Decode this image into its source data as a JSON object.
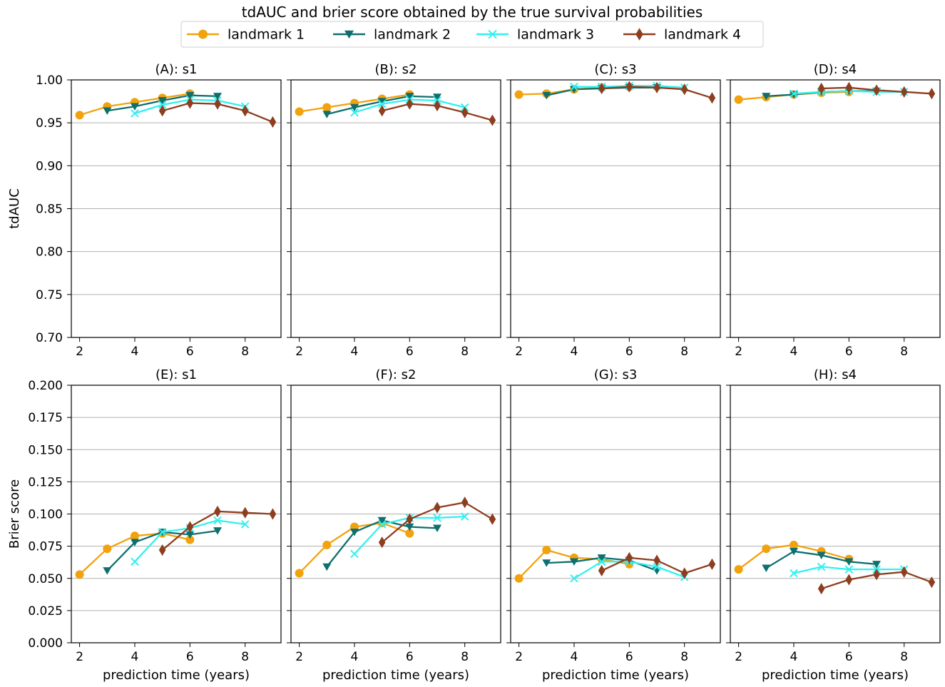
{
  "figure_title": "tdAUC and brier score obtained by the true survival probabilities",
  "legend": [
    {
      "label": "landmark 1",
      "color": "#f2a20d",
      "marker": "circle"
    },
    {
      "label": "landmark 2",
      "color": "#0e6f6f",
      "marker": "triangle-down"
    },
    {
      "label": "landmark 3",
      "color": "#33f0f0",
      "marker": "x"
    },
    {
      "label": "landmark 4",
      "color": "#8e3e1f",
      "marker": "diamond"
    }
  ],
  "chart_data": [
    {
      "type": "line",
      "title": "(A): s1",
      "xlabel": "",
      "ylabel": "tdAUC",
      "xlim": [
        1.7,
        9.3
      ],
      "ylim": [
        0.7,
        1.0
      ],
      "xticks": [
        "2",
        "4",
        "6",
        "8"
      ],
      "yticks": [
        "0.70",
        "0.75",
        "0.80",
        "0.85",
        "0.90",
        "0.95",
        "1.00"
      ],
      "series": [
        {
          "name": "landmark 1",
          "x": [
            2,
            3,
            4,
            5,
            6
          ],
          "y": [
            0.959,
            0.969,
            0.974,
            0.979,
            0.984
          ]
        },
        {
          "name": "landmark 2",
          "x": [
            3,
            4,
            5,
            6,
            7
          ],
          "y": [
            0.964,
            0.969,
            0.976,
            0.982,
            0.981
          ]
        },
        {
          "name": "landmark 3",
          "x": [
            4,
            5,
            6,
            7,
            8
          ],
          "y": [
            0.961,
            0.971,
            0.977,
            0.976,
            0.969
          ]
        },
        {
          "name": "landmark 4",
          "x": [
            5,
            6,
            7,
            8,
            9
          ],
          "y": [
            0.964,
            0.973,
            0.972,
            0.964,
            0.951
          ]
        }
      ]
    },
    {
      "type": "line",
      "title": "(B): s2",
      "xlabel": "",
      "ylabel": "",
      "xlim": [
        1.7,
        9.3
      ],
      "ylim": [
        0.7,
        1.0
      ],
      "xticks": [
        "2",
        "4",
        "6",
        "8"
      ],
      "yticks": [],
      "series": [
        {
          "name": "landmark 1",
          "x": [
            2,
            3,
            4,
            5,
            6
          ],
          "y": [
            0.963,
            0.968,
            0.973,
            0.978,
            0.983
          ]
        },
        {
          "name": "landmark 2",
          "x": [
            3,
            4,
            5,
            6,
            7
          ],
          "y": [
            0.96,
            0.968,
            0.975,
            0.981,
            0.98
          ]
        },
        {
          "name": "landmark 3",
          "x": [
            4,
            5,
            6,
            7,
            8
          ],
          "y": [
            0.962,
            0.972,
            0.977,
            0.976,
            0.968
          ]
        },
        {
          "name": "landmark 4",
          "x": [
            5,
            6,
            7,
            8,
            9
          ],
          "y": [
            0.964,
            0.972,
            0.97,
            0.962,
            0.953
          ]
        }
      ]
    },
    {
      "type": "line",
      "title": "(C): s3",
      "xlabel": "",
      "ylabel": "",
      "xlim": [
        1.7,
        9.3
      ],
      "ylim": [
        0.7,
        1.0
      ],
      "xticks": [
        "2",
        "4",
        "6",
        "8"
      ],
      "yticks": [],
      "series": [
        {
          "name": "landmark 1",
          "x": [
            2,
            3,
            4,
            5,
            6
          ],
          "y": [
            0.983,
            0.984,
            0.989,
            0.991,
            0.992
          ]
        },
        {
          "name": "landmark 2",
          "x": [
            3,
            4,
            5,
            6,
            7
          ],
          "y": [
            0.982,
            0.989,
            0.99,
            0.991,
            0.991
          ]
        },
        {
          "name": "landmark 3",
          "x": [
            4,
            5,
            6,
            7,
            8
          ],
          "y": [
            0.992,
            0.992,
            0.993,
            0.993,
            0.991
          ]
        },
        {
          "name": "landmark 4",
          "x": [
            5,
            6,
            7,
            8,
            9
          ],
          "y": [
            0.99,
            0.992,
            0.991,
            0.989,
            0.979
          ]
        }
      ]
    },
    {
      "type": "line",
      "title": "(D): s4",
      "xlabel": "",
      "ylabel": "",
      "xlim": [
        1.7,
        9.3
      ],
      "ylim": [
        0.7,
        1.0
      ],
      "xticks": [
        "2",
        "4",
        "6",
        "8"
      ],
      "yticks": [],
      "series": [
        {
          "name": "landmark 1",
          "x": [
            2,
            3,
            4,
            5,
            6
          ],
          "y": [
            0.977,
            0.98,
            0.983,
            0.985,
            0.986
          ]
        },
        {
          "name": "landmark 2",
          "x": [
            3,
            4,
            5,
            6,
            7
          ],
          "y": [
            0.981,
            0.983,
            0.986,
            0.987,
            0.987
          ]
        },
        {
          "name": "landmark 3",
          "x": [
            4,
            5,
            6,
            7,
            8
          ],
          "y": [
            0.984,
            0.986,
            0.987,
            0.986,
            0.986
          ]
        },
        {
          "name": "landmark 4",
          "x": [
            5,
            6,
            7,
            8,
            9
          ],
          "y": [
            0.99,
            0.991,
            0.988,
            0.986,
            0.984
          ]
        }
      ]
    },
    {
      "type": "line",
      "title": "(E): s1",
      "xlabel": "prediction time (years)",
      "ylabel": "Brier score",
      "xlim": [
        1.7,
        9.3
      ],
      "ylim": [
        0.0,
        0.2
      ],
      "xticks": [
        "2",
        "4",
        "6",
        "8"
      ],
      "yticks": [
        "0.000",
        "0.025",
        "0.050",
        "0.075",
        "0.100",
        "0.125",
        "0.150",
        "0.175",
        "0.200"
      ],
      "series": [
        {
          "name": "landmark 1",
          "x": [
            2,
            3,
            4,
            5,
            6
          ],
          "y": [
            0.053,
            0.073,
            0.083,
            0.085,
            0.08
          ]
        },
        {
          "name": "landmark 2",
          "x": [
            3,
            4,
            5,
            6,
            7
          ],
          "y": [
            0.056,
            0.078,
            0.086,
            0.084,
            0.087
          ]
        },
        {
          "name": "landmark 3",
          "x": [
            4,
            5,
            6,
            7,
            8
          ],
          "y": [
            0.063,
            0.086,
            0.089,
            0.095,
            0.092
          ]
        },
        {
          "name": "landmark 4",
          "x": [
            5,
            6,
            7,
            8,
            9
          ],
          "y": [
            0.072,
            0.09,
            0.102,
            0.101,
            0.1
          ]
        }
      ]
    },
    {
      "type": "line",
      "title": "(F): s2",
      "xlabel": "prediction time (years)",
      "ylabel": "",
      "xlim": [
        1.7,
        9.3
      ],
      "ylim": [
        0.0,
        0.2
      ],
      "xticks": [
        "2",
        "4",
        "6",
        "8"
      ],
      "yticks": [],
      "series": [
        {
          "name": "landmark 1",
          "x": [
            2,
            3,
            4,
            5,
            6
          ],
          "y": [
            0.054,
            0.076,
            0.09,
            0.093,
            0.085
          ]
        },
        {
          "name": "landmark 2",
          "x": [
            3,
            4,
            5,
            6,
            7
          ],
          "y": [
            0.059,
            0.086,
            0.095,
            0.09,
            0.089
          ]
        },
        {
          "name": "landmark 3",
          "x": [
            4,
            5,
            6,
            7,
            8
          ],
          "y": [
            0.069,
            0.092,
            0.097,
            0.097,
            0.098
          ]
        },
        {
          "name": "landmark 4",
          "x": [
            5,
            6,
            7,
            8,
            9
          ],
          "y": [
            0.078,
            0.096,
            0.105,
            0.109,
            0.096
          ]
        }
      ]
    },
    {
      "type": "line",
      "title": "(G): s3",
      "xlabel": "prediction time (years)",
      "ylabel": "",
      "xlim": [
        1.7,
        9.3
      ],
      "ylim": [
        0.0,
        0.2
      ],
      "xticks": [
        "2",
        "4",
        "6",
        "8"
      ],
      "yticks": [],
      "series": [
        {
          "name": "landmark 1",
          "x": [
            2,
            3,
            4,
            5,
            6
          ],
          "y": [
            0.05,
            0.072,
            0.066,
            0.065,
            0.061
          ]
        },
        {
          "name": "landmark 2",
          "x": [
            3,
            4,
            5,
            6,
            7
          ],
          "y": [
            0.062,
            0.063,
            0.066,
            0.064,
            0.056
          ]
        },
        {
          "name": "landmark 3",
          "x": [
            4,
            5,
            6,
            7,
            8
          ],
          "y": [
            0.05,
            0.063,
            0.063,
            0.059,
            0.051
          ]
        },
        {
          "name": "landmark 4",
          "x": [
            5,
            6,
            7,
            8,
            9
          ],
          "y": [
            0.056,
            0.066,
            0.064,
            0.054,
            0.061
          ]
        }
      ]
    },
    {
      "type": "line",
      "title": "(H): s4",
      "xlabel": "prediction time (years)",
      "ylabel": "",
      "xlim": [
        1.7,
        9.3
      ],
      "ylim": [
        0.0,
        0.2
      ],
      "xticks": [
        "2",
        "4",
        "6",
        "8"
      ],
      "yticks": [],
      "series": [
        {
          "name": "landmark 1",
          "x": [
            2,
            3,
            4,
            5,
            6
          ],
          "y": [
            0.057,
            0.073,
            0.076,
            0.071,
            0.065
          ]
        },
        {
          "name": "landmark 2",
          "x": [
            3,
            4,
            5,
            6,
            7
          ],
          "y": [
            0.058,
            0.071,
            0.068,
            0.063,
            0.061
          ]
        },
        {
          "name": "landmark 3",
          "x": [
            4,
            5,
            6,
            7,
            8
          ],
          "y": [
            0.054,
            0.059,
            0.057,
            0.057,
            0.057
          ]
        },
        {
          "name": "landmark 4",
          "x": [
            5,
            6,
            7,
            8,
            9
          ],
          "y": [
            0.042,
            0.049,
            0.053,
            0.055,
            0.047
          ]
        }
      ]
    }
  ]
}
